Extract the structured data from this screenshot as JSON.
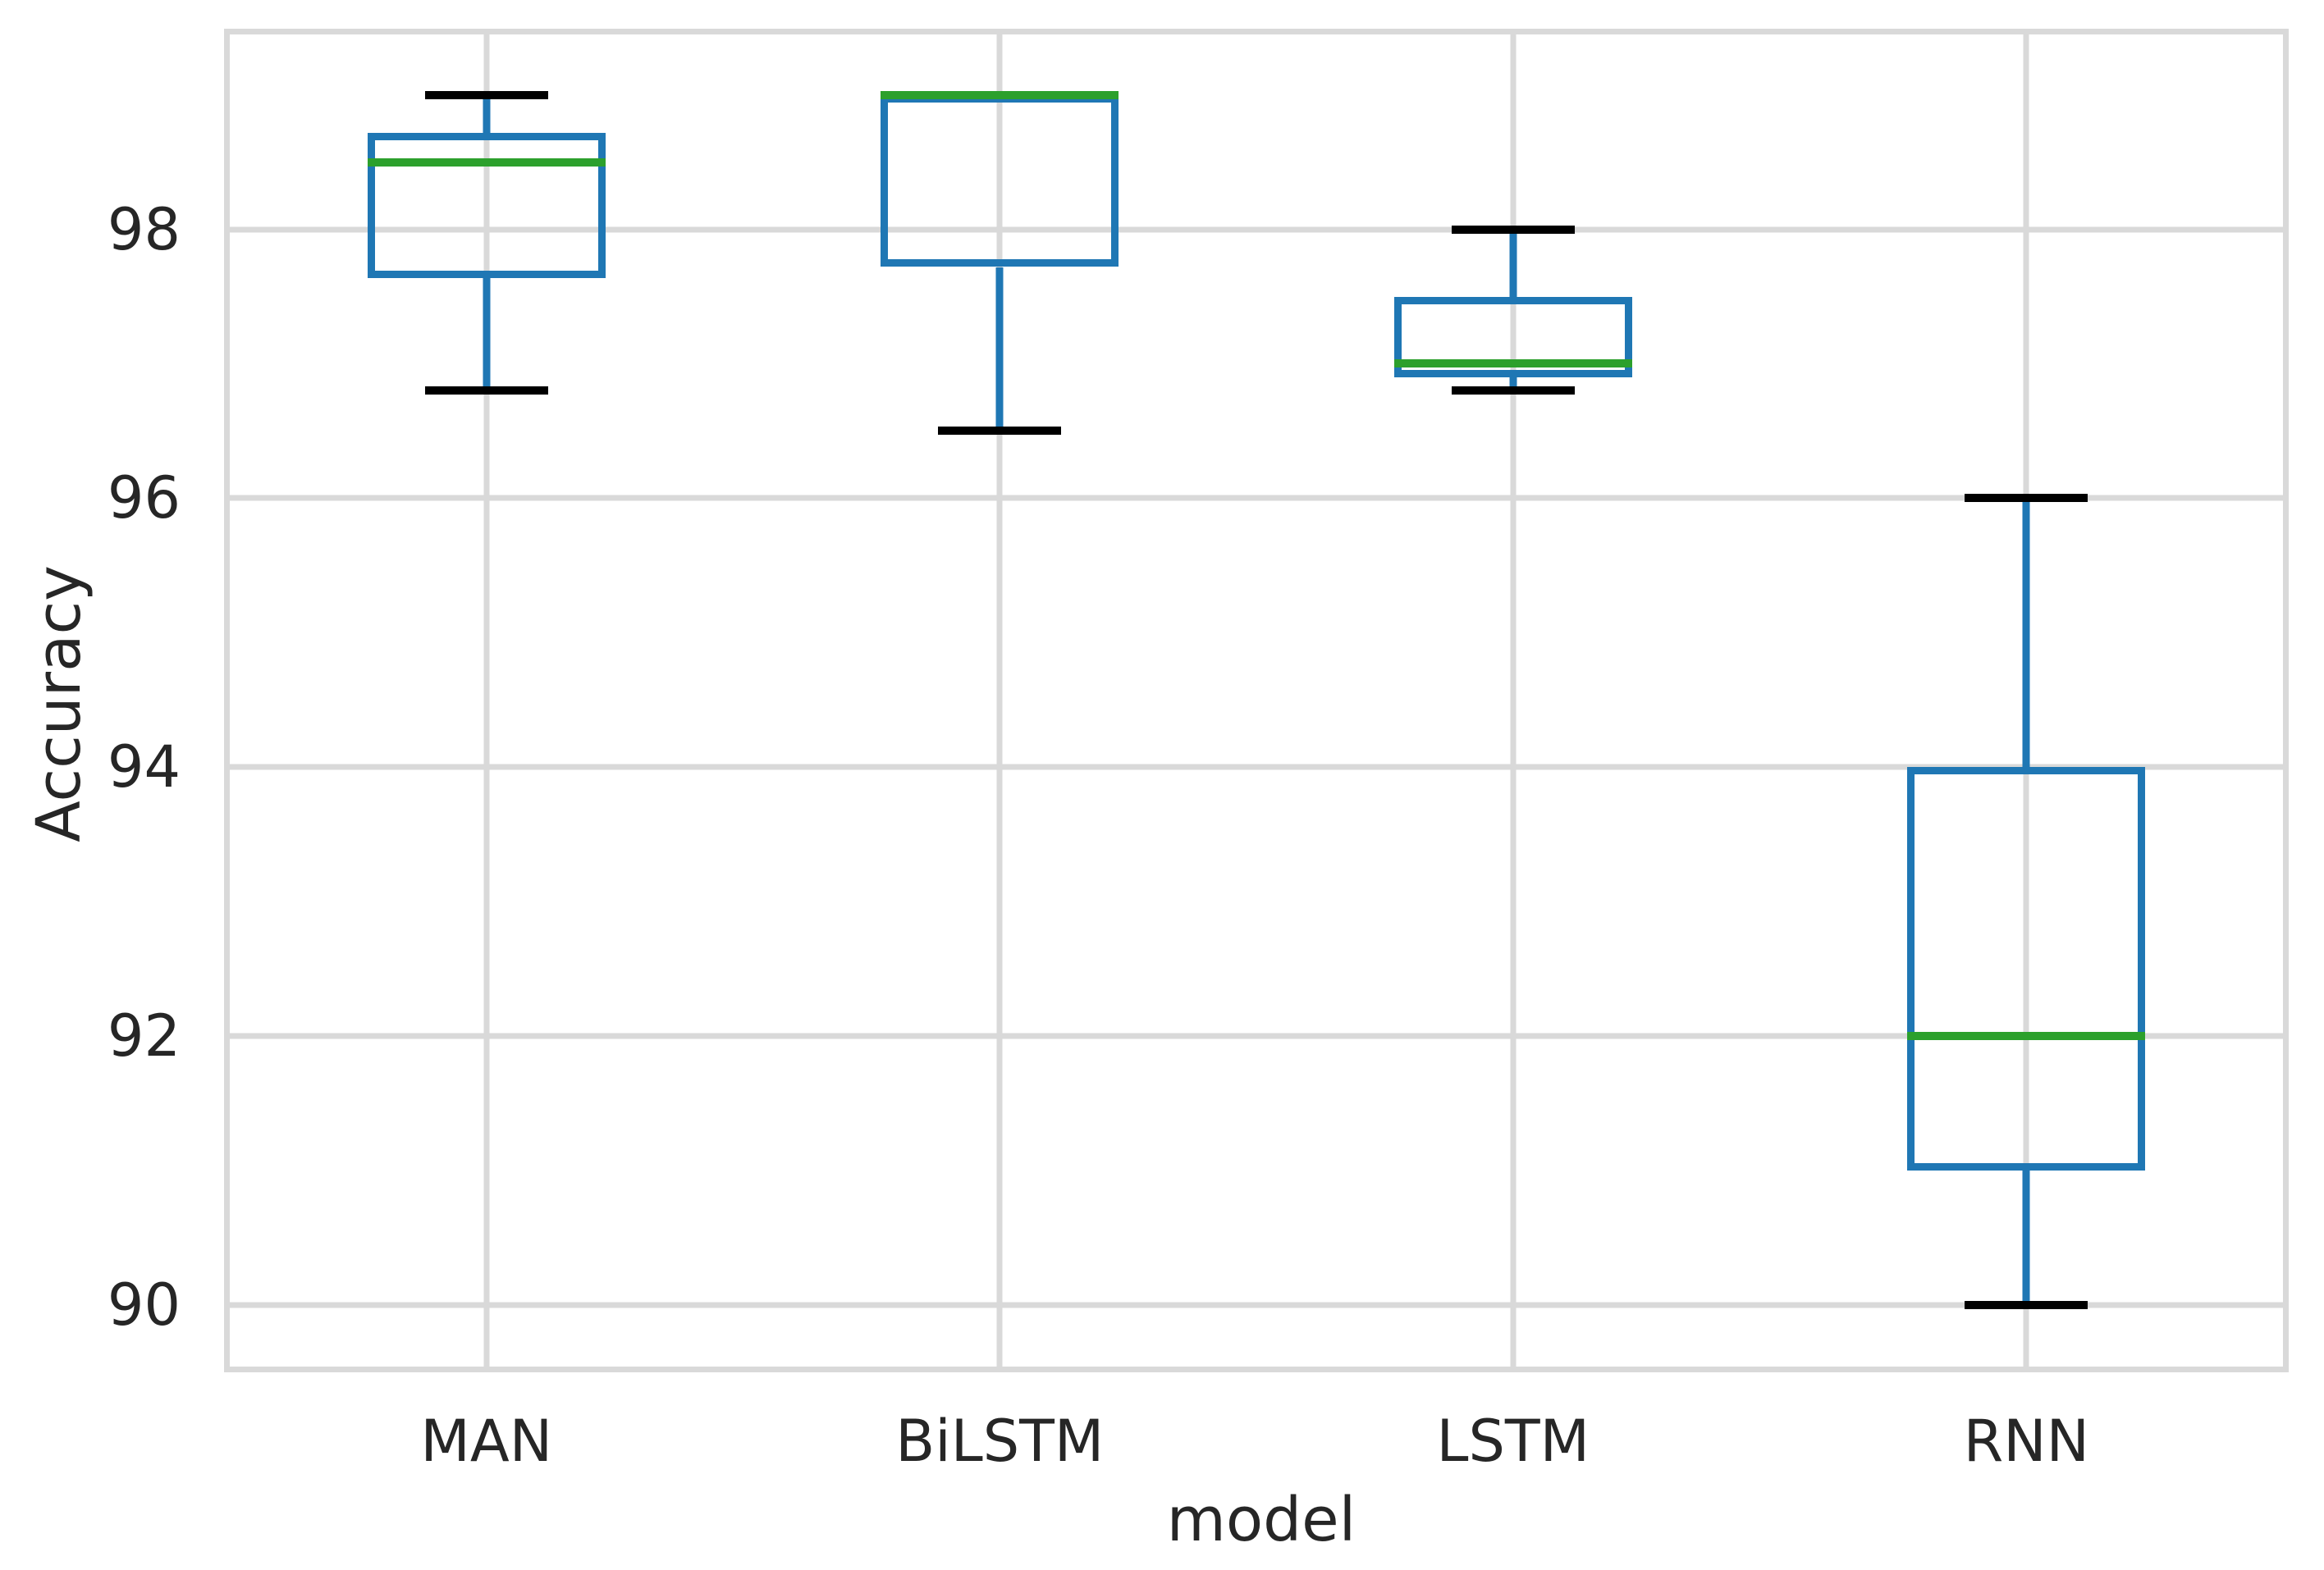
{
  "figure": {
    "background": "#ffffff"
  },
  "chart_data": {
    "type": "box",
    "title": "",
    "xlabel": "model",
    "ylabel": "Accuracy",
    "categories": [
      "MAN",
      "BiLSTM",
      "LSTM",
      "RNN"
    ],
    "boxes": [
      {
        "name": "MAN",
        "whislo": 96.8,
        "q1": 97.64,
        "med": 98.5,
        "q3": 98.72,
        "whishi": 99.0
      },
      {
        "name": "BiLSTM",
        "whislo": 96.5,
        "q1": 97.72,
        "med": 99.0,
        "q3": 99.0,
        "whishi": 99.0
      },
      {
        "name": "LSTM",
        "whislo": 96.8,
        "q1": 96.9,
        "med": 97.0,
        "q3": 97.5,
        "whishi": 98.0
      },
      {
        "name": "RNN",
        "whislo": 90.0,
        "q1": 91.0,
        "med": 92.0,
        "q3": 94.0,
        "whishi": 96.0
      }
    ],
    "yticks": [
      98,
      96,
      94,
      92,
      90
    ],
    "ylim": [
      89.54,
      99.45
    ],
    "grid": true,
    "legend": false,
    "colors": {
      "box_edge": "#1f77b4",
      "whisker": "#1f77b4",
      "median": "#2ca02c",
      "cap": "#000000",
      "grid": "#d9d9d9",
      "text": "#262626",
      "background": "#ffffff"
    }
  }
}
